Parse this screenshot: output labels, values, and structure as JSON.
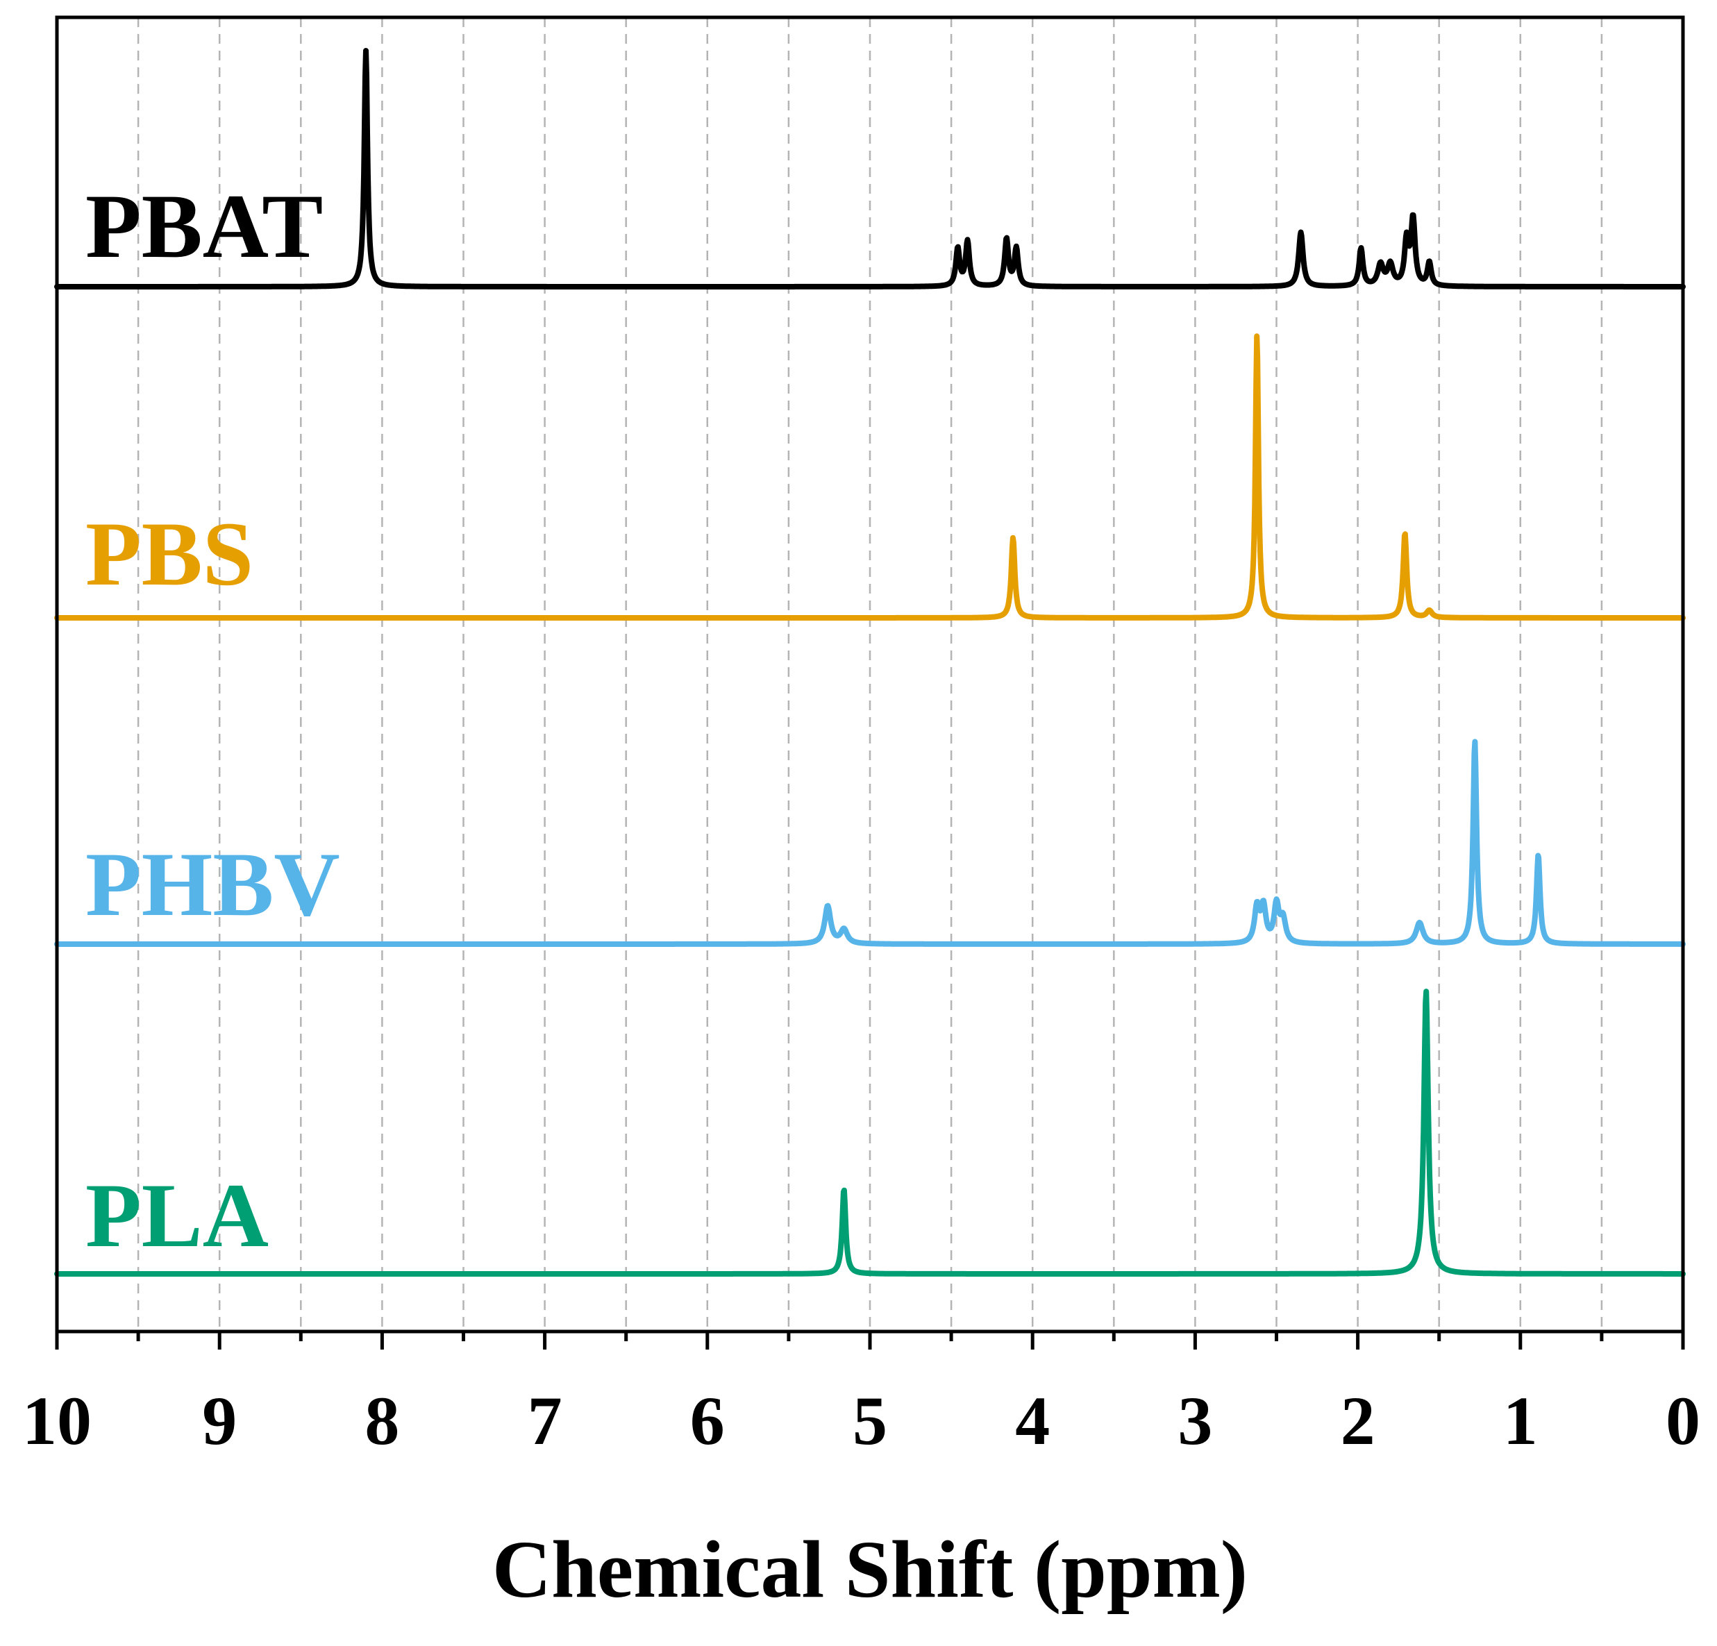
{
  "chart_data": {
    "type": "line",
    "title": "",
    "xlabel": "Chemical Shift (ppm)",
    "ylabel": "",
    "xlim": [
      10,
      0
    ],
    "x_reversed": true,
    "grid": true,
    "x_tick_labels": [
      "10",
      "9",
      "8",
      "7",
      "6",
      "5",
      "4",
      "3",
      "2",
      "1",
      "0"
    ],
    "x_ticks": [
      10,
      9,
      8,
      7,
      6,
      5,
      4,
      3,
      2,
      1,
      0
    ],
    "x_minor_ticks": [
      9.5,
      8.5,
      7.5,
      6.5,
      5.5,
      4.5,
      3.5,
      2.5,
      1.5,
      0.5
    ],
    "series": [
      {
        "name": "PBAT",
        "color": "#000000",
        "peaks": [
          {
            "ppm": 8.1,
            "height": 1.0,
            "width": 0.012
          },
          {
            "ppm": 4.46,
            "height": 0.16,
            "width": 0.014
          },
          {
            "ppm": 4.4,
            "height": 0.19,
            "width": 0.014
          },
          {
            "ppm": 4.16,
            "height": 0.2,
            "width": 0.014
          },
          {
            "ppm": 4.1,
            "height": 0.16,
            "width": 0.014
          },
          {
            "ppm": 2.35,
            "height": 0.23,
            "width": 0.016
          },
          {
            "ppm": 1.98,
            "height": 0.16,
            "width": 0.014
          },
          {
            "ppm": 1.86,
            "height": 0.09,
            "width": 0.02
          },
          {
            "ppm": 1.8,
            "height": 0.09,
            "width": 0.02
          },
          {
            "ppm": 1.7,
            "height": 0.19,
            "width": 0.015
          },
          {
            "ppm": 1.66,
            "height": 0.28,
            "width": 0.015
          },
          {
            "ppm": 1.56,
            "height": 0.1,
            "width": 0.014
          }
        ]
      },
      {
        "name": "PBS",
        "color": "#E69F00",
        "peaks": [
          {
            "ppm": 4.12,
            "height": 0.34,
            "width": 0.013
          },
          {
            "ppm": 2.62,
            "height": 1.2,
            "width": 0.011
          },
          {
            "ppm": 1.71,
            "height": 0.36,
            "width": 0.013
          },
          {
            "ppm": 1.56,
            "height": 0.03,
            "width": 0.02
          }
        ]
      },
      {
        "name": "PHBV",
        "color": "#56B4E9",
        "peaks": [
          {
            "ppm": 5.26,
            "height": 0.16,
            "width": 0.022
          },
          {
            "ppm": 5.16,
            "height": 0.06,
            "width": 0.025
          },
          {
            "ppm": 2.62,
            "height": 0.15,
            "width": 0.018
          },
          {
            "ppm": 2.58,
            "height": 0.15,
            "width": 0.018
          },
          {
            "ppm": 2.5,
            "height": 0.16,
            "width": 0.018
          },
          {
            "ppm": 2.46,
            "height": 0.1,
            "width": 0.02
          },
          {
            "ppm": 1.62,
            "height": 0.09,
            "width": 0.025
          },
          {
            "ppm": 1.28,
            "height": 0.86,
            "width": 0.013
          },
          {
            "ppm": 0.89,
            "height": 0.38,
            "width": 0.013
          }
        ]
      },
      {
        "name": "PLA",
        "color": "#009E73",
        "peaks": [
          {
            "ppm": 5.16,
            "height": 0.36,
            "width": 0.013
          },
          {
            "ppm": 1.58,
            "height": 1.2,
            "width": 0.016
          }
        ]
      }
    ]
  }
}
